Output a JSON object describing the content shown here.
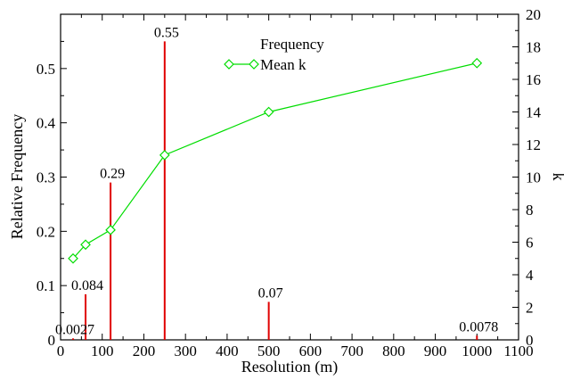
{
  "chart_data": {
    "type": "bar",
    "title": "",
    "xlabel": "Resolution (m)",
    "ylabel": "Relative Frequency",
    "y2label": "k",
    "xlim": [
      0,
      1100
    ],
    "ylim": [
      0,
      0.6
    ],
    "y2lim": [
      0,
      20
    ],
    "xticks": [
      0,
      100,
      200,
      300,
      400,
      500,
      600,
      700,
      800,
      900,
      1000,
      1100
    ],
    "yticks": [
      0,
      0.1,
      0.2,
      0.3,
      0.4,
      0.5
    ],
    "y2ticks": [
      0,
      2,
      4,
      6,
      8,
      10,
      12,
      14,
      16,
      18,
      20
    ],
    "grid": false,
    "legend_position": "top-center",
    "series": [
      {
        "name": "Frequency",
        "type": "bar",
        "axis": "left",
        "color": "#e00000",
        "x": [
          30,
          60,
          120,
          250,
          500,
          1000
        ],
        "values": [
          0.0027,
          0.084,
          0.29,
          0.55,
          0.07,
          0.0078
        ],
        "labels": [
          "0.0027",
          "0.084",
          "0.29",
          "0.55",
          "0.07",
          "0.0078"
        ]
      },
      {
        "name": "Mean k",
        "type": "line",
        "axis": "right",
        "color": "#00dd00",
        "marker": "diamond",
        "x": [
          30,
          60,
          120,
          250,
          500,
          1000
        ],
        "values": [
          5.0,
          5.85,
          6.75,
          11.35,
          14.0,
          17.0
        ]
      }
    ]
  }
}
